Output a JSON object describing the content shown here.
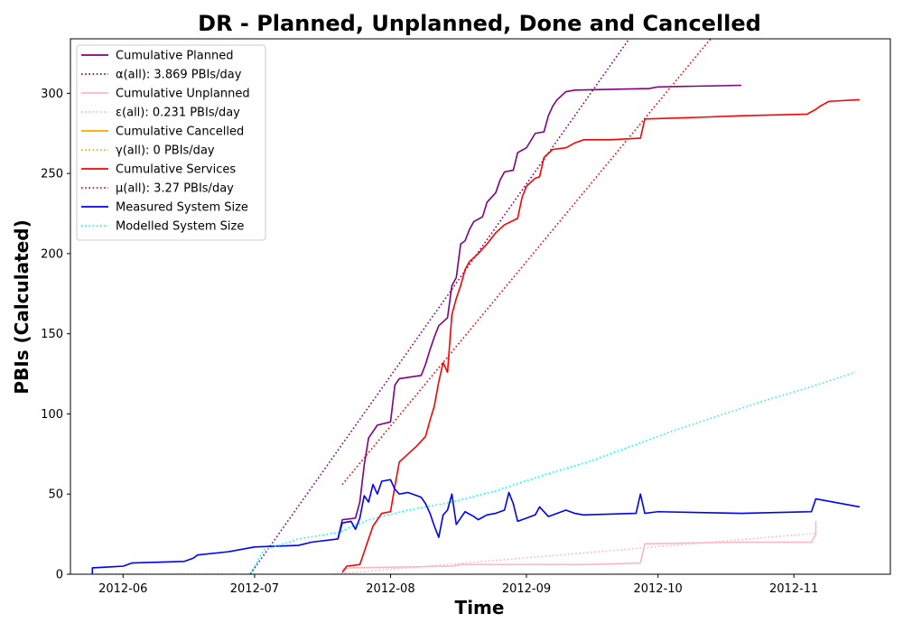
{
  "chart_data": {
    "type": "line",
    "title": "DR - Planned, Unplanned, Done  and Cancelled",
    "xlabel": "Time",
    "ylabel": "PBIs (Calculated)",
    "xlim": [
      "2012-05-20",
      "2012-11-23"
    ],
    "ylim": [
      0,
      334
    ],
    "x_ticks": [
      "2012-06-01",
      "2012-07-01",
      "2012-08-01",
      "2012-09-01",
      "2012-10-01",
      "2012-11-01"
    ],
    "x_tick_labels": [
      "2012-06",
      "2012-07",
      "2012-08",
      "2012-09",
      "2012-10",
      "2012-11"
    ],
    "y_ticks": [
      0,
      50,
      100,
      150,
      200,
      250,
      300
    ],
    "grid": false,
    "legend_placement": "top-left",
    "series": [
      {
        "name": "Cumulative Planned",
        "style": "solid",
        "color": "#800080",
        "points": [
          [
            "2012-07-20",
            22
          ],
          [
            "2012-07-21",
            34
          ],
          [
            "2012-07-24",
            35
          ],
          [
            "2012-07-25",
            45
          ],
          [
            "2012-07-26",
            68
          ],
          [
            "2012-07-27",
            85
          ],
          [
            "2012-07-29",
            93
          ],
          [
            "2012-08-01",
            95
          ],
          [
            "2012-08-02",
            118
          ],
          [
            "2012-08-03",
            122
          ],
          [
            "2012-08-08",
            124
          ],
          [
            "2012-08-09",
            131
          ],
          [
            "2012-08-10",
            140
          ],
          [
            "2012-08-11",
            148
          ],
          [
            "2012-08-12",
            155
          ],
          [
            "2012-08-14",
            160
          ],
          [
            "2012-08-15",
            180
          ],
          [
            "2012-08-16",
            185
          ],
          [
            "2012-08-17",
            206
          ],
          [
            "2012-08-18",
            208
          ],
          [
            "2012-08-19",
            215
          ],
          [
            "2012-08-20",
            220
          ],
          [
            "2012-08-22",
            223
          ],
          [
            "2012-08-23",
            232
          ],
          [
            "2012-08-25",
            238
          ],
          [
            "2012-08-26",
            246
          ],
          [
            "2012-08-27",
            251
          ],
          [
            "2012-08-29",
            252
          ],
          [
            "2012-08-30",
            263
          ],
          [
            "2012-09-01",
            266
          ],
          [
            "2012-09-03",
            275
          ],
          [
            "2012-09-05",
            276
          ],
          [
            "2012-09-06",
            286
          ],
          [
            "2012-09-07",
            292
          ],
          [
            "2012-09-08",
            296
          ],
          [
            "2012-09-10",
            301
          ],
          [
            "2012-09-12",
            302
          ],
          [
            "2012-09-29",
            303
          ],
          [
            "2012-10-01",
            304
          ],
          [
            "2012-10-20",
            305
          ]
        ]
      },
      {
        "name": "α(all): 3.869 PBIs/day",
        "style": "dotted",
        "color": "#800080",
        "points": [
          [
            "2012-06-30",
            0
          ],
          [
            "2012-09-26",
            340
          ]
        ]
      },
      {
        "name": "Cumulative Unplanned",
        "style": "solid",
        "color": "#ffb6c1",
        "points": [
          [
            "2012-07-21",
            3
          ],
          [
            "2012-07-23",
            4
          ],
          [
            "2012-08-15",
            5
          ],
          [
            "2012-08-17",
            6
          ],
          [
            "2012-09-15",
            6
          ],
          [
            "2012-09-27",
            7
          ],
          [
            "2012-09-28",
            19
          ],
          [
            "2012-10-20",
            20
          ],
          [
            "2012-11-05",
            20
          ],
          [
            "2012-11-06",
            25
          ],
          [
            "2012-11-06",
            33
          ]
        ]
      },
      {
        "name": "ε(all): 0.231 PBIs/day",
        "style": "dotted",
        "color": "#ffb6c1",
        "points": [
          [
            "2012-07-19",
            0
          ],
          [
            "2012-11-06",
            25.6
          ]
        ]
      },
      {
        "name": "Cumulative Cancelled",
        "style": "solid",
        "color": "#ffa500",
        "points": []
      },
      {
        "name": "γ(all): 0 PBIs/day",
        "style": "dotted",
        "color": "#ffa500",
        "points": []
      },
      {
        "name": "Cumulative Services",
        "style": "solid",
        "color": "#ff0000",
        "points": [
          [
            "2012-07-21",
            1
          ],
          [
            "2012-07-22",
            5
          ],
          [
            "2012-07-25",
            6
          ],
          [
            "2012-07-26",
            14
          ],
          [
            "2012-07-27",
            22
          ],
          [
            "2012-07-28",
            30
          ],
          [
            "2012-07-30",
            38
          ],
          [
            "2012-08-01",
            39
          ],
          [
            "2012-08-02",
            55
          ],
          [
            "2012-08-03",
            70
          ],
          [
            "2012-08-05",
            75
          ],
          [
            "2012-08-07",
            80
          ],
          [
            "2012-08-09",
            86
          ],
          [
            "2012-08-10",
            96
          ],
          [
            "2012-08-11",
            105
          ],
          [
            "2012-08-12",
            120
          ],
          [
            "2012-08-13",
            132
          ],
          [
            "2012-08-14",
            126
          ],
          [
            "2012-08-15",
            162
          ],
          [
            "2012-08-16",
            172
          ],
          [
            "2012-08-17",
            180
          ],
          [
            "2012-08-18",
            190
          ],
          [
            "2012-08-19",
            195
          ],
          [
            "2012-08-21",
            200
          ],
          [
            "2012-08-23",
            206
          ],
          [
            "2012-08-25",
            213
          ],
          [
            "2012-08-27",
            218
          ],
          [
            "2012-08-30",
            222
          ],
          [
            "2012-08-31",
            235
          ],
          [
            "2012-09-01",
            242
          ],
          [
            "2012-09-03",
            247
          ],
          [
            "2012-09-04",
            248
          ],
          [
            "2012-09-05",
            260
          ],
          [
            "2012-09-07",
            265
          ],
          [
            "2012-09-10",
            266
          ],
          [
            "2012-09-12",
            269
          ],
          [
            "2012-09-14",
            271
          ],
          [
            "2012-09-20",
            271
          ],
          [
            "2012-09-27",
            272
          ],
          [
            "2012-09-28",
            284
          ],
          [
            "2012-10-10",
            285
          ],
          [
            "2012-10-20",
            286
          ],
          [
            "2012-11-04",
            287
          ],
          [
            "2012-11-06",
            290
          ],
          [
            "2012-11-07",
            292
          ],
          [
            "2012-11-09",
            295
          ],
          [
            "2012-11-16",
            296
          ]
        ]
      },
      {
        "name": "μ(all): 3.27 PBIs/day",
        "style": "dotted",
        "color": "#ff0000",
        "points": [
          [
            "2012-07-21",
            56
          ],
          [
            "2012-10-13",
            334
          ]
        ]
      },
      {
        "name": "Measured System Size",
        "style": "solid",
        "color": "#0000ff",
        "points": [
          [
            "2012-05-25",
            0
          ],
          [
            "2012-05-25",
            4
          ],
          [
            "2012-06-01",
            5
          ],
          [
            "2012-06-03",
            7
          ],
          [
            "2012-06-15",
            8
          ],
          [
            "2012-06-17",
            10
          ],
          [
            "2012-06-18",
            12
          ],
          [
            "2012-06-25",
            14
          ],
          [
            "2012-07-01",
            17
          ],
          [
            "2012-07-11",
            18
          ],
          [
            "2012-07-14",
            20
          ],
          [
            "2012-07-20",
            22
          ],
          [
            "2012-07-21",
            32
          ],
          [
            "2012-07-23",
            33
          ],
          [
            "2012-07-24",
            28
          ],
          [
            "2012-07-25",
            35
          ],
          [
            "2012-07-26",
            49
          ],
          [
            "2012-07-27",
            45
          ],
          [
            "2012-07-28",
            56
          ],
          [
            "2012-07-29",
            50
          ],
          [
            "2012-07-30",
            58
          ],
          [
            "2012-08-01",
            59
          ],
          [
            "2012-08-02",
            53
          ],
          [
            "2012-08-03",
            50
          ],
          [
            "2012-08-05",
            51
          ],
          [
            "2012-08-08",
            48
          ],
          [
            "2012-08-09",
            44
          ],
          [
            "2012-08-10",
            38
          ],
          [
            "2012-08-11",
            30
          ],
          [
            "2012-08-12",
            23
          ],
          [
            "2012-08-13",
            37
          ],
          [
            "2012-08-14",
            40
          ],
          [
            "2012-08-15",
            50
          ],
          [
            "2012-08-16",
            31
          ],
          [
            "2012-08-17",
            35
          ],
          [
            "2012-08-18",
            39
          ],
          [
            "2012-08-20",
            36
          ],
          [
            "2012-08-21",
            34
          ],
          [
            "2012-08-23",
            37
          ],
          [
            "2012-08-25",
            38
          ],
          [
            "2012-08-27",
            40
          ],
          [
            "2012-08-28",
            51
          ],
          [
            "2012-08-29",
            44
          ],
          [
            "2012-08-30",
            33
          ],
          [
            "2012-09-01",
            35
          ],
          [
            "2012-09-03",
            37
          ],
          [
            "2012-09-04",
            42
          ],
          [
            "2012-09-06",
            36
          ],
          [
            "2012-09-10",
            40
          ],
          [
            "2012-09-12",
            38
          ],
          [
            "2012-09-14",
            37
          ],
          [
            "2012-09-26",
            38
          ],
          [
            "2012-09-27",
            50
          ],
          [
            "2012-09-28",
            38
          ],
          [
            "2012-10-01",
            39
          ],
          [
            "2012-10-20",
            38
          ],
          [
            "2012-11-05",
            39
          ],
          [
            "2012-11-06",
            47
          ],
          [
            "2012-11-08",
            46
          ],
          [
            "2012-11-16",
            42
          ]
        ]
      },
      {
        "name": "Modelled System Size",
        "style": "dotted",
        "color": "#00ffff",
        "points": [
          [
            "2012-05-25",
            0
          ],
          [
            "2012-06-30",
            0
          ],
          [
            "2012-07-03",
            15
          ],
          [
            "2012-07-11",
            22
          ],
          [
            "2012-07-20",
            26
          ],
          [
            "2012-07-27",
            34
          ],
          [
            "2012-08-05",
            40
          ],
          [
            "2012-08-15",
            45
          ],
          [
            "2012-08-25",
            52
          ],
          [
            "2012-09-05",
            62
          ],
          [
            "2012-09-15",
            70
          ],
          [
            "2012-09-25",
            80
          ],
          [
            "2012-10-05",
            90
          ],
          [
            "2012-10-15",
            99
          ],
          [
            "2012-10-25",
            108
          ],
          [
            "2012-11-05",
            117
          ],
          [
            "2012-11-15",
            126
          ]
        ]
      }
    ]
  }
}
